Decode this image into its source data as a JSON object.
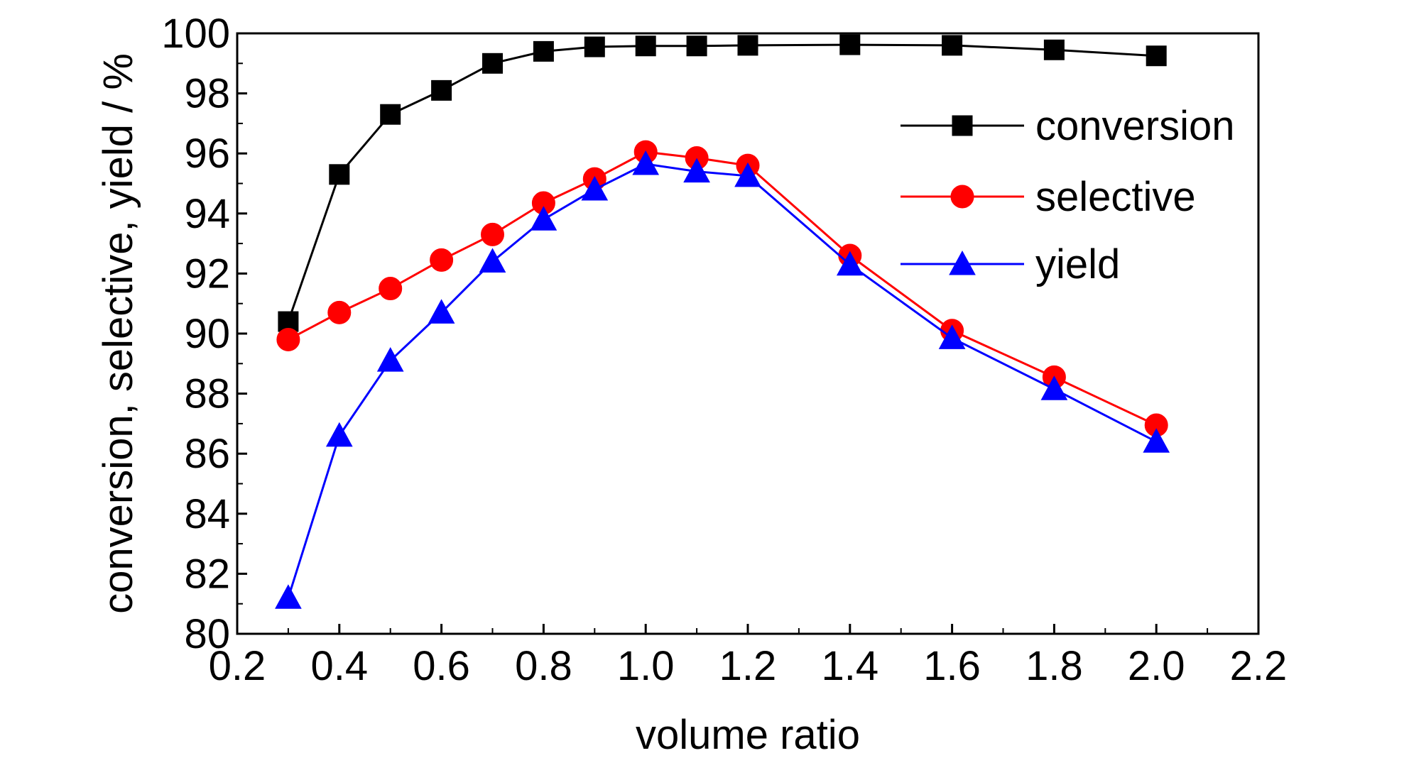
{
  "chart_data": {
    "type": "line",
    "title": "",
    "xlabel": "volume ratio",
    "ylabel": "conversion, selective, yield / %",
    "xlim": [
      0.2,
      2.2
    ],
    "ylim": [
      80,
      100
    ],
    "x_ticks": [
      "0.2",
      "0.4",
      "0.6",
      "0.8",
      "1.0",
      "1.2",
      "1.4",
      "1.6",
      "1.8",
      "2.0",
      "2.2"
    ],
    "y_ticks": [
      "80",
      "82",
      "84",
      "86",
      "88",
      "90",
      "92",
      "94",
      "96",
      "98",
      "100"
    ],
    "grid": false,
    "legend_position": "top-right",
    "x": [
      0.3,
      0.4,
      0.5,
      0.6,
      0.7,
      0.8,
      0.9,
      1.0,
      1.1,
      1.2,
      1.4,
      1.6,
      1.8,
      2.0
    ],
    "series": [
      {
        "name": "conversion",
        "color": "#000000",
        "marker": "square",
        "values": [
          90.4,
          95.3,
          97.3,
          98.1,
          99.0,
          99.4,
          99.55,
          99.58,
          99.58,
          99.6,
          99.62,
          99.6,
          99.45,
          99.25
        ]
      },
      {
        "name": "selective",
        "color": "#ff0000",
        "marker": "circle",
        "values": [
          89.8,
          90.7,
          91.5,
          92.45,
          93.3,
          94.35,
          95.15,
          96.05,
          95.85,
          95.6,
          92.6,
          90.1,
          88.55,
          86.95
        ]
      },
      {
        "name": "yield",
        "color": "#0000ff",
        "marker": "triangle",
        "values": [
          81.2,
          86.6,
          89.1,
          90.7,
          92.4,
          93.8,
          94.8,
          95.65,
          95.4,
          95.25,
          92.3,
          89.85,
          88.15,
          86.4
        ]
      }
    ]
  }
}
